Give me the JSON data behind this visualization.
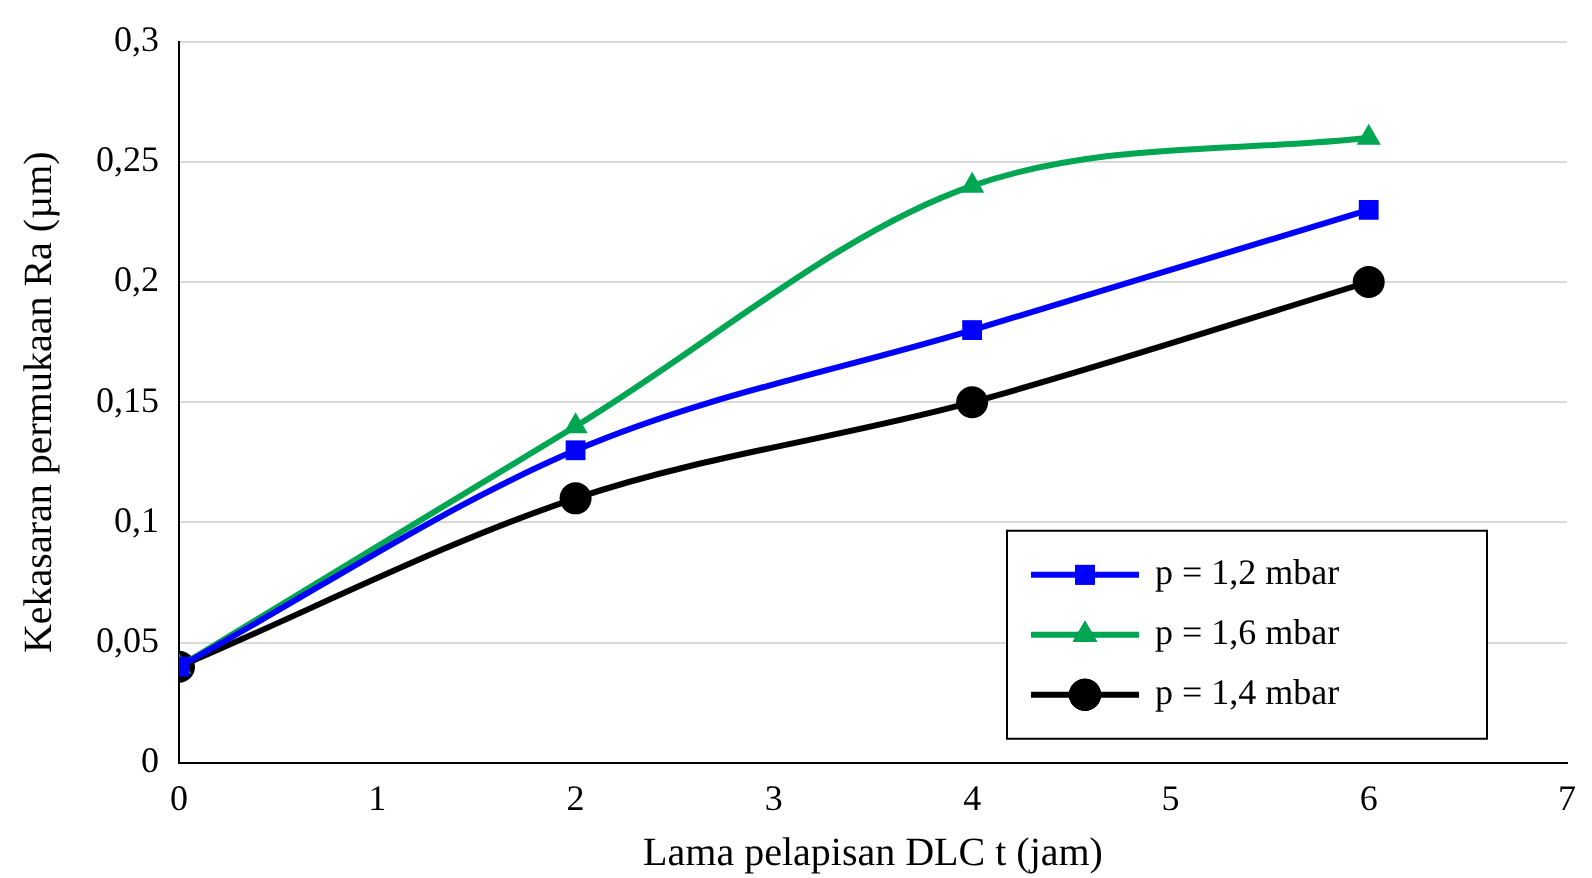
{
  "chart_data": {
    "type": "line",
    "xlabel": "Lama pelapisan DLC t (jam)",
    "ylabel": "Kekasaran permukaan Ra (µm)",
    "x": [
      0,
      2,
      4,
      6
    ],
    "series": [
      {
        "name": "p = 1,2 mbar",
        "color": "#0000ff",
        "marker": "square",
        "values": [
          0.04,
          0.13,
          0.18,
          0.23
        ]
      },
      {
        "name": "p = 1,6 mbar",
        "color": "#00a651",
        "marker": "triangle",
        "values": [
          0.04,
          0.14,
          0.24,
          0.26
        ]
      },
      {
        "name": "p = 1,4 mbar",
        "color": "#000000",
        "marker": "circle",
        "values": [
          0.04,
          0.11,
          0.15,
          0.2
        ]
      }
    ],
    "xlim": [
      0,
      7
    ],
    "xticks": [
      0,
      1,
      2,
      3,
      4,
      5,
      6,
      7
    ],
    "ylim": [
      0,
      0.3
    ],
    "yticks": [
      0,
      {
        "value": 0.05,
        "label": "0,05"
      },
      {
        "value": 0.1,
        "label": "0,1"
      },
      {
        "value": 0.15,
        "label": "0,15"
      },
      {
        "value": 0.2,
        "label": "0,2"
      },
      {
        "value": 0.25,
        "label": "0,25"
      },
      {
        "value": 0.3,
        "label": "0,3"
      }
    ],
    "grid": "y",
    "legend": "bottom right",
    "line_style": "solid"
  }
}
